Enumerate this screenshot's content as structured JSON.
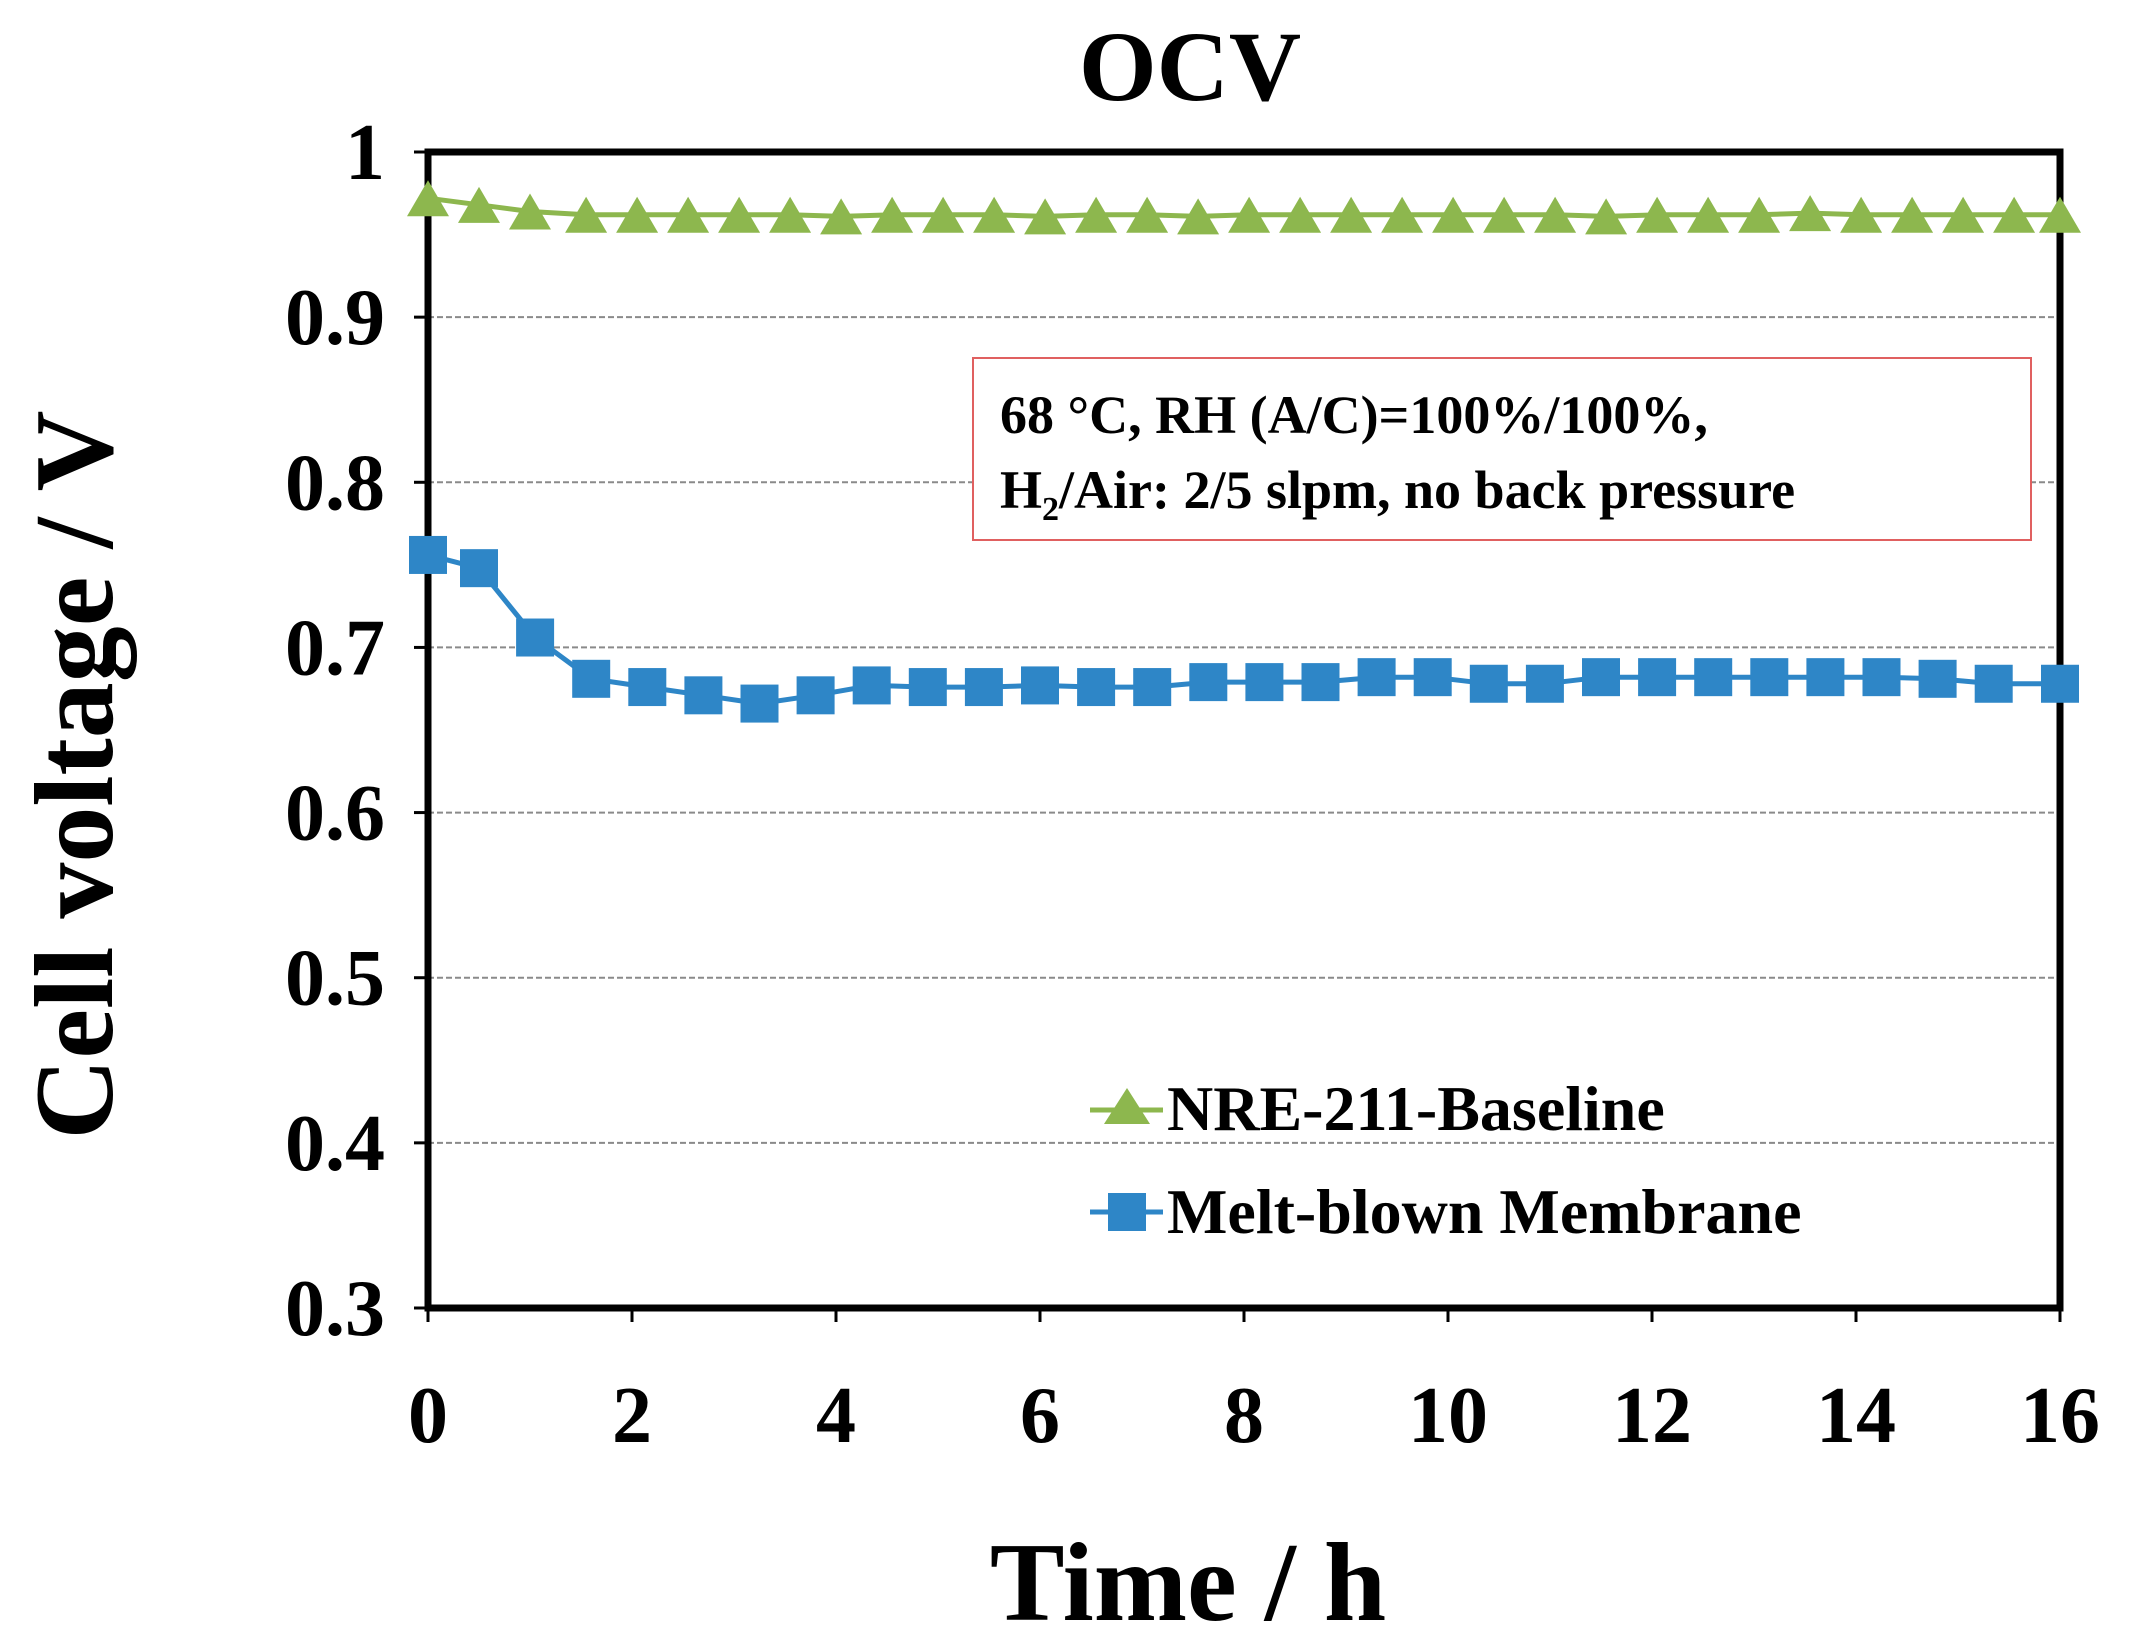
{
  "chart_data": {
    "type": "line",
    "title": "OCV",
    "xlabel": "Time / h",
    "ylabel": "Cell voltage / V",
    "xlim": [
      0,
      16
    ],
    "ylim": [
      0.3,
      1
    ],
    "x_ticks": [
      0,
      2,
      4,
      6,
      8,
      10,
      12,
      14,
      16
    ],
    "x_tick_labels": [
      "0",
      "2",
      "4",
      "6",
      "8",
      "10",
      "12",
      "14",
      "16"
    ],
    "y_ticks": [
      0.3,
      0.4,
      0.5,
      0.6,
      0.7,
      0.8,
      0.9,
      1.0
    ],
    "y_tick_labels": [
      "0.3",
      "0.4",
      "0.5",
      "0.6",
      "0.7",
      "0.8",
      "0.9",
      "1"
    ],
    "grid": "horizontal dashed",
    "legend_position": "bottom-right",
    "annotation": {
      "line1": "68 °C, RH (A/C)=100%/100%,",
      "line2_prefix": "H",
      "line2_sub": "2",
      "line2_suffix": "/Air: 2/5 slpm, no back pressure"
    },
    "series": [
      {
        "name": "NRE-211-Baseline",
        "color": "#8DB74E",
        "marker": "triangle",
        "x": [
          0,
          0.5,
          1.0,
          1.55,
          2.05,
          2.55,
          3.05,
          3.55,
          4.05,
          4.55,
          5.05,
          5.55,
          6.05,
          6.55,
          7.05,
          7.55,
          8.05,
          8.55,
          9.05,
          9.55,
          10.05,
          10.55,
          11.05,
          11.55,
          12.05,
          12.55,
          13.05,
          13.55,
          14.05,
          14.55,
          15.05,
          15.55,
          16.0
        ],
        "y": [
          0.972,
          0.968,
          0.964,
          0.962,
          0.962,
          0.962,
          0.962,
          0.962,
          0.961,
          0.962,
          0.962,
          0.962,
          0.961,
          0.962,
          0.962,
          0.961,
          0.962,
          0.962,
          0.962,
          0.962,
          0.962,
          0.962,
          0.962,
          0.961,
          0.962,
          0.962,
          0.962,
          0.963,
          0.962,
          0.962,
          0.962,
          0.962,
          0.962
        ]
      },
      {
        "name": "Melt-blown Membrane",
        "color": "#2E86C7",
        "marker": "square",
        "x": [
          0,
          0.5,
          1.05,
          1.6,
          2.15,
          2.7,
          3.25,
          3.8,
          4.35,
          4.9,
          5.45,
          6.0,
          6.55,
          7.1,
          7.65,
          8.2,
          8.75,
          9.3,
          9.85,
          10.4,
          10.95,
          11.5,
          12.05,
          12.6,
          13.15,
          13.7,
          14.25,
          14.8,
          15.35,
          16.0
        ],
        "y": [
          0.756,
          0.748,
          0.706,
          0.681,
          0.676,
          0.671,
          0.666,
          0.671,
          0.677,
          0.676,
          0.676,
          0.677,
          0.676,
          0.676,
          0.679,
          0.679,
          0.679,
          0.682,
          0.682,
          0.678,
          0.678,
          0.682,
          0.682,
          0.682,
          0.682,
          0.682,
          0.682,
          0.681,
          0.678,
          0.678
        ]
      }
    ]
  }
}
